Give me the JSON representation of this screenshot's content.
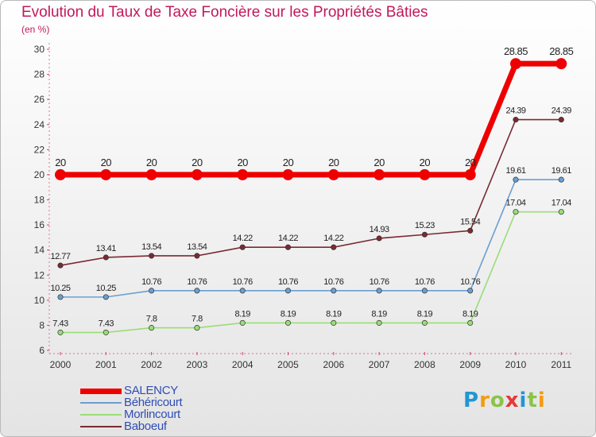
{
  "title": "Evolution du Taux de Taxe Foncière sur les Propriétés Bâties",
  "unit": "(en %)",
  "logo": {
    "letters": [
      "P",
      "r",
      "o",
      "x",
      "i",
      "t",
      "i"
    ],
    "colors": [
      "#2196d3",
      "#f39c12",
      "#8bc34a",
      "#e53935",
      "#2196d3",
      "#8bc34a",
      "#f39c12"
    ]
  },
  "chart_data": {
    "type": "line",
    "title": "Evolution du Taux de Taxe Foncière sur les Propriétés Bâties",
    "xlabel": "",
    "ylabel": "(en %)",
    "ylim": [
      6,
      30
    ],
    "yticks": [
      6,
      8,
      10,
      12,
      14,
      16,
      18,
      20,
      22,
      24,
      26,
      28,
      30
    ],
    "grid": false,
    "legend_position": "bottom-left",
    "categories": [
      "2000",
      "2001",
      "2002",
      "2003",
      "2004",
      "2005",
      "2006",
      "2007",
      "2008",
      "2009",
      "2010",
      "2011"
    ],
    "series": [
      {
        "name": "SALENCY",
        "color": "#ee0000",
        "thick": true,
        "values": [
          20,
          20,
          20,
          20,
          20,
          20,
          20,
          20,
          20,
          20,
          28.85,
          28.85
        ],
        "labels": [
          "20",
          "20",
          "20",
          "20",
          "20",
          "20",
          "20",
          "20",
          "20",
          "20",
          "28.85",
          "28.85"
        ]
      },
      {
        "name": "Béhéricourt",
        "color": "#6b9ed1",
        "thick": false,
        "values": [
          10.25,
          10.25,
          10.76,
          10.76,
          10.76,
          10.76,
          10.76,
          10.76,
          10.76,
          10.76,
          19.61,
          19.61
        ],
        "labels": [
          "10.25",
          "10.25",
          "10.76",
          "10.76",
          "10.76",
          "10.76",
          "10.76",
          "10.76",
          "10.76",
          "10.76",
          "19.61",
          "19.61"
        ]
      },
      {
        "name": "Morlincourt",
        "color": "#99dd77",
        "thick": false,
        "values": [
          7.43,
          7.43,
          7.8,
          7.8,
          8.19,
          8.19,
          8.19,
          8.19,
          8.19,
          8.19,
          17.04,
          17.04
        ],
        "labels": [
          "7.43",
          "7.43",
          "7.8",
          "7.8",
          "8.19",
          "8.19",
          "8.19",
          "8.19",
          "8.19",
          "8.19",
          "17.04",
          "17.04"
        ]
      },
      {
        "name": "Baboeuf",
        "color": "#7a2a33",
        "thick": false,
        "values": [
          12.77,
          13.41,
          13.54,
          13.54,
          14.22,
          14.22,
          14.22,
          14.93,
          15.23,
          15.54,
          24.39,
          24.39
        ],
        "labels": [
          "12.77",
          "13.41",
          "13.54",
          "13.54",
          "14.22",
          "14.22",
          "14.22",
          "14.93",
          "15.23",
          "15.54",
          "24.39",
          "24.39"
        ]
      }
    ]
  }
}
